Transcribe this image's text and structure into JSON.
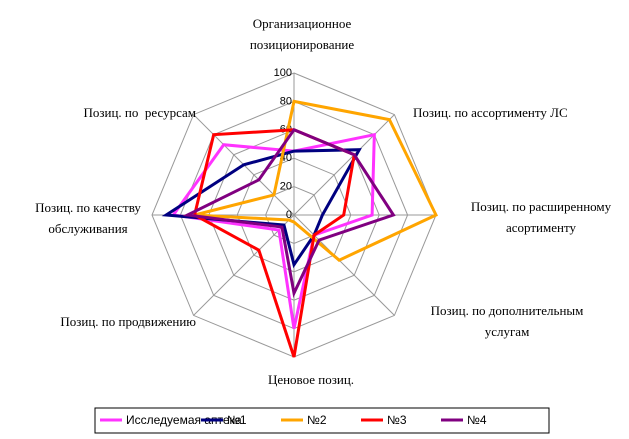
{
  "chart_data": {
    "type": "radar",
    "categories": [
      "Организационное\nпозиционирование",
      "Позиц. по ассортименту ЛС",
      "Позиц. по расширенному\nасортименту",
      "Позиц. по дополнительным\nуслугам",
      "Ценовое позиц.",
      "Позиц. по продвижению",
      "Позиц. по качеству\nобслуживания",
      "Позиц. по  ресурсам"
    ],
    "rlim": [
      0,
      100
    ],
    "rticks": [
      0,
      20,
      40,
      60,
      80,
      100
    ],
    "grid": true,
    "legend": "bottom",
    "series": [
      {
        "name": "Исследуемая аптека",
        "color": "#ff33ff",
        "values": [
          45,
          80,
          55,
          20,
          80,
          15,
          85,
          70
        ]
      },
      {
        "name": "№1",
        "color": "#000080",
        "values": [
          45,
          65,
          20,
          20,
          35,
          10,
          90,
          50
        ]
      },
      {
        "name": "№2",
        "color": "#ffa500",
        "values": [
          80,
          95,
          100,
          45,
          5,
          5,
          70,
          20
        ]
      },
      {
        "name": "№3",
        "color": "#ff0000",
        "values": [
          60,
          60,
          35,
          20,
          100,
          35,
          70,
          80
        ]
      },
      {
        "name": "№4",
        "color": "#800080",
        "values": [
          60,
          60,
          70,
          25,
          55,
          12,
          75,
          35
        ]
      }
    ]
  }
}
